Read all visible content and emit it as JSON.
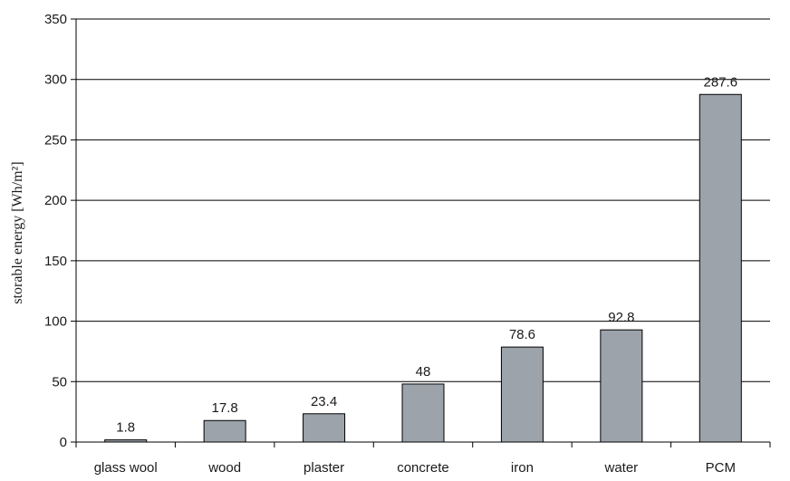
{
  "chart_data": {
    "type": "bar",
    "title": "",
    "xlabel": "",
    "ylabel": "storable energy [Wh/m²]",
    "ylim": [
      0,
      350
    ],
    "yticks": [
      0,
      50,
      100,
      150,
      200,
      250,
      300,
      350
    ],
    "grid": true,
    "legend": "none",
    "categories": [
      "glass wool",
      "wood",
      "plaster",
      "concrete",
      "iron",
      "water",
      "PCM"
    ],
    "values": [
      1.8,
      17.8,
      23.4,
      48,
      78.6,
      92.8,
      287.6
    ],
    "data_labels": [
      "1.8",
      "17.8",
      "23.4",
      "48",
      "78.6",
      "92.8",
      "287.6"
    ],
    "colors": {
      "bar_fill": "#9ca3ab",
      "bar_stroke": "#000000",
      "grid": "#000000",
      "axis": "#000000"
    }
  }
}
